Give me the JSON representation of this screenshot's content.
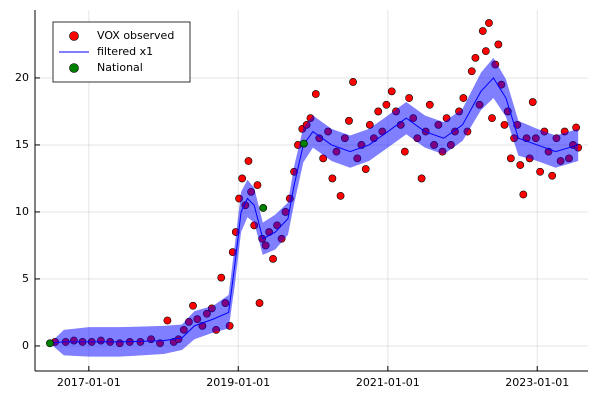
{
  "chart_data": {
    "type": "line",
    "xlim": [
      "2016-04-13",
      "2023-09-06"
    ],
    "xticks": [
      "2017-01-01",
      "2019-01-01",
      "2021-01-01",
      "2023-01-01"
    ],
    "ylim": [
      -1.87,
      25.07
    ],
    "yticks": [
      0,
      5,
      10,
      15,
      20
    ],
    "grid": true,
    "legend": "top-left",
    "series": [
      {
        "name": "VOX observed",
        "kind": "scatter",
        "color": "#ff0000",
        "x": [
          "2016-07-20",
          "2016-09-10",
          "2016-10-20",
          "2016-12-01",
          "2017-01-15",
          "2017-03-01",
          "2017-04-15",
          "2017-06-01",
          "2017-07-20",
          "2017-09-10",
          "2017-11-01",
          "2017-12-15",
          "2018-01-20",
          "2018-02-20",
          "2018-03-15",
          "2018-04-10",
          "2018-05-05",
          "2018-05-25",
          "2018-06-15",
          "2018-07-10",
          "2018-08-01",
          "2018-08-25",
          "2018-09-15",
          "2018-10-10",
          "2018-10-30",
          "2018-11-20",
          "2018-12-05",
          "2018-12-20",
          "2019-01-05",
          "2019-01-20",
          "2019-02-05",
          "2019-02-20",
          "2019-03-05",
          "2019-03-20",
          "2019-04-05",
          "2019-04-15",
          "2019-04-28",
          "2019-05-15",
          "2019-06-01",
          "2019-06-20",
          "2019-07-10",
          "2019-08-01",
          "2019-08-20",
          "2019-09-10",
          "2019-10-01",
          "2019-10-20",
          "2019-11-10",
          "2019-12-01",
          "2019-12-20",
          "2020-01-15",
          "2020-02-01",
          "2020-02-20",
          "2020-03-15",
          "2020-04-05",
          "2020-04-25",
          "2020-05-15",
          "2020-06-05",
          "2020-06-25",
          "2020-07-15",
          "2020-08-05",
          "2020-08-25",
          "2020-09-15",
          "2020-10-05",
          "2020-10-25",
          "2020-11-15",
          "2020-12-05",
          "2020-12-25",
          "2021-01-20",
          "2021-02-10",
          "2021-03-05",
          "2021-03-25",
          "2021-04-15",
          "2021-05-05",
          "2021-05-25",
          "2021-06-15",
          "2021-07-05",
          "2021-07-25",
          "2021-08-15",
          "2021-09-05",
          "2021-09-25",
          "2021-10-15",
          "2021-11-05",
          "2021-11-25",
          "2021-12-15",
          "2022-01-05",
          "2022-01-25",
          "2022-02-15",
          "2022-03-05",
          "2022-03-25",
          "2022-04-10",
          "2022-04-25",
          "2022-05-10",
          "2022-05-25",
          "2022-06-10",
          "2022-06-25",
          "2022-07-10",
          "2022-07-25",
          "2022-08-10",
          "2022-08-25",
          "2022-09-10",
          "2022-09-25",
          "2022-10-10",
          "2022-10-25",
          "2022-11-10",
          "2022-11-25",
          "2022-12-10",
          "2022-12-25",
          "2023-01-15",
          "2023-02-05",
          "2023-02-25",
          "2023-03-15",
          "2023-04-05",
          "2023-04-25",
          "2023-05-15",
          "2023-06-05",
          "2023-06-25",
          "2023-07-10",
          "2023-07-20"
        ],
        "values": [
          0.3,
          0.3,
          0.4,
          0.3,
          0.3,
          0.4,
          0.3,
          0.2,
          0.3,
          0.3,
          0.5,
          0.2,
          1.9,
          0.3,
          0.5,
          1.2,
          1.8,
          3.0,
          2.0,
          1.5,
          2.4,
          2.8,
          1.2,
          5.1,
          3.2,
          1.5,
          7.0,
          8.5,
          11.0,
          12.5,
          10.5,
          13.8,
          11.5,
          9.0,
          12.0,
          3.2,
          8.0,
          7.5,
          8.5,
          6.5,
          9.0,
          8.0,
          10.0,
          11.0,
          13.0,
          15.0,
          16.2,
          16.5,
          17.0,
          18.8,
          15.5,
          14.0,
          16.0,
          12.5,
          14.5,
          11.2,
          15.5,
          16.8,
          19.7,
          14.0,
          15.0,
          13.2,
          16.5,
          15.5,
          17.5,
          16.0,
          18.0,
          19.0,
          17.5,
          16.5,
          14.5,
          18.5,
          17.0,
          15.5,
          12.5,
          16.0,
          18.0,
          15.0,
          16.5,
          14.5,
          17.0,
          15.0,
          16.0,
          17.5,
          18.5,
          16.0,
          20.5,
          21.5,
          18.0,
          23.5,
          22.0,
          24.1,
          17.0,
          21.0,
          22.5,
          19.5,
          16.5,
          17.5,
          14.0,
          15.5,
          16.5,
          13.5,
          11.3,
          15.5,
          14.0,
          18.2,
          15.5,
          13.0,
          16.0,
          14.5,
          12.7,
          15.5,
          13.8,
          16.0,
          14.0,
          15.0,
          16.3,
          14.8
        ]
      },
      {
        "name": "filtered x1",
        "kind": "line",
        "color": "#0000ff",
        "x": [
          "2016-06-25",
          "2016-09-01",
          "2017-01-01",
          "2017-06-01",
          "2018-01-01",
          "2018-04-01",
          "2018-06-01",
          "2018-09-01",
          "2018-11-15",
          "2018-12-15",
          "2019-01-15",
          "2019-02-15",
          "2019-03-20",
          "2019-05-01",
          "2019-07-01",
          "2019-09-01",
          "2019-10-01",
          "2019-11-15",
          "2020-01-01",
          "2020-04-01",
          "2020-07-01",
          "2020-10-01",
          "2021-01-01",
          "2021-04-01",
          "2021-07-01",
          "2021-10-01",
          "2022-01-01",
          "2022-04-01",
          "2022-06-01",
          "2022-08-01",
          "2022-10-01",
          "2023-01-01",
          "2023-04-01",
          "2023-07-20"
        ],
        "values": [
          0.2,
          0.3,
          0.3,
          0.3,
          0.4,
          0.6,
          1.5,
          2.0,
          2.5,
          6.0,
          10.0,
          11.0,
          10.5,
          8.0,
          8.5,
          9.5,
          12.0,
          15.0,
          16.0,
          15.0,
          14.5,
          15.0,
          16.0,
          17.0,
          16.0,
          15.5,
          16.5,
          19.0,
          20.0,
          18.5,
          15.5,
          15.0,
          14.5,
          15.0
        ],
        "lower": [
          0.2,
          -0.7,
          -0.8,
          -0.8,
          -0.6,
          -0.3,
          0.5,
          1.0,
          1.3,
          4.5,
          8.5,
          9.6,
          9.2,
          6.8,
          7.2,
          8.3,
          10.6,
          13.7,
          14.8,
          13.8,
          13.3,
          13.8,
          14.8,
          15.8,
          14.8,
          14.3,
          15.3,
          17.6,
          18.5,
          17.1,
          14.2,
          13.8,
          13.3,
          13.8
        ],
        "upper": [
          0.2,
          1.2,
          1.4,
          1.4,
          1.5,
          1.6,
          2.6,
          3.0,
          3.8,
          7.5,
          11.5,
          12.4,
          11.8,
          9.2,
          9.8,
          10.7,
          13.4,
          16.3,
          17.2,
          16.2,
          15.7,
          16.2,
          17.2,
          18.2,
          17.2,
          16.7,
          17.7,
          20.4,
          21.5,
          19.9,
          16.8,
          16.2,
          15.7,
          16.2
        ]
      },
      {
        "name": "National",
        "kind": "scatter",
        "color": "#008000",
        "x": [
          "2016-06-25",
          "2019-05-03",
          "2019-11-18"
        ],
        "values": [
          0.2,
          10.3,
          15.1
        ]
      }
    ]
  }
}
